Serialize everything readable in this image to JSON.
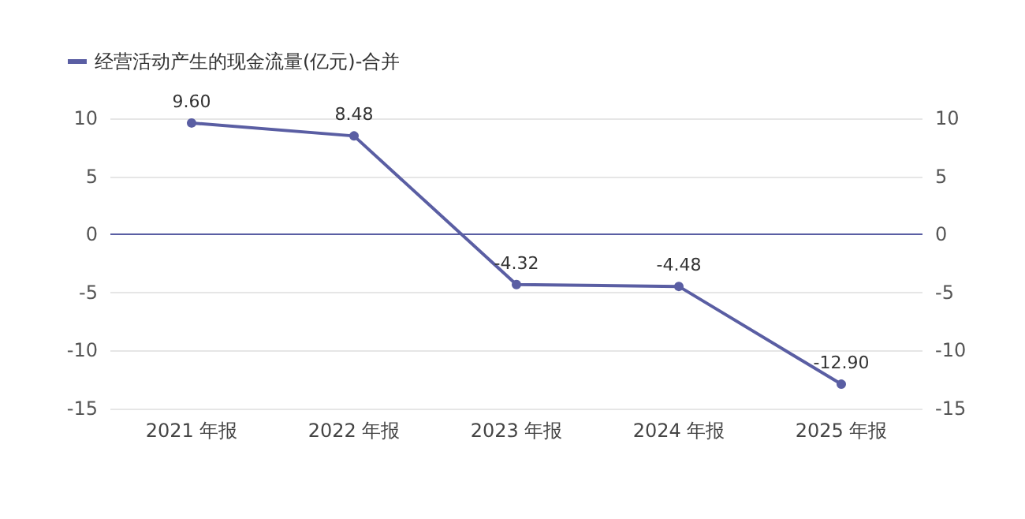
{
  "chart_data": {
    "type": "line",
    "categories": [
      "2021 年报",
      "2022 年报",
      "2023 年报",
      "2024 年报",
      "2025 年报"
    ],
    "series": [
      {
        "name": "经营活动产生的现金流量(亿元)-合并",
        "color": "#5a5ea3",
        "values": [
          9.6,
          8.48,
          -4.32,
          -4.48,
          -12.9
        ],
        "value_labels": [
          "9.60",
          "8.48",
          "-4.32",
          "-4.48",
          "-12.90"
        ]
      }
    ],
    "ref_lines": [
      {
        "axis": "y",
        "value": 0,
        "color": "#5a5ea3"
      }
    ],
    "ylim": [
      -15,
      10
    ],
    "yticks": [
      -15,
      -10,
      -5,
      0,
      5,
      10
    ],
    "y2lim": [
      -15,
      10
    ],
    "y2ticks": [
      -15,
      -10,
      -5,
      0,
      5,
      10
    ],
    "grid": "y",
    "legend": "top left",
    "marker": "circle",
    "line_style": "solid"
  }
}
